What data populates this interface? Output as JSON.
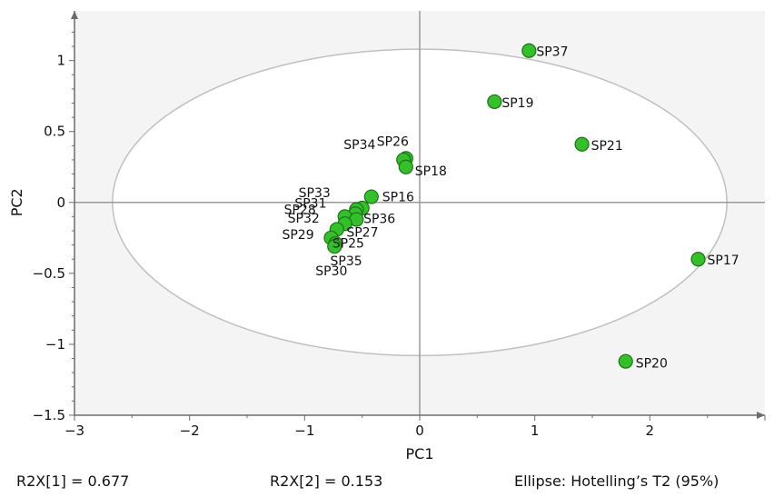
{
  "chart_data": {
    "type": "scatter",
    "xlabel": "PC1",
    "ylabel": "PC2",
    "xlim": [
      -3,
      3
    ],
    "ylim": [
      -1.5,
      1.35
    ],
    "xticks": [
      "−3",
      "−2",
      "−1",
      "0",
      "1",
      "2"
    ],
    "xtick_values": [
      -3,
      -2,
      -1,
      0,
      1,
      2
    ],
    "yticks": [
      "−1.5",
      "−1",
      "−0.5",
      "0",
      "0.5",
      "1"
    ],
    "ytick_values": [
      -1.5,
      -1,
      -0.5,
      0,
      0.5,
      1
    ],
    "grid": false,
    "ellipse": {
      "center": [
        0,
        0
      ],
      "rx": 2.67,
      "ry": 1.08
    },
    "colors": {
      "point": "#33c12a",
      "point_stroke": "#1f6f17",
      "plot_bg": "#f4f4f4",
      "ellipse": "#c0c0c0"
    },
    "points": [
      {
        "name": "SP37",
        "x": 0.95,
        "y": 1.07
      },
      {
        "name": "SP19",
        "x": 0.65,
        "y": 0.71
      },
      {
        "name": "SP21",
        "x": 1.41,
        "y": 0.41
      },
      {
        "name": "SP26",
        "x": -0.12,
        "y": 0.31
      },
      {
        "name": "SP34",
        "x": -0.14,
        "y": 0.3
      },
      {
        "name": "SP18",
        "x": -0.12,
        "y": 0.25
      },
      {
        "name": "SP16",
        "x": -0.42,
        "y": 0.04
      },
      {
        "name": "SP33",
        "x": -0.5,
        "y": -0.04
      },
      {
        "name": "SP31",
        "x": -0.55,
        "y": -0.05
      },
      {
        "name": "SP36",
        "x": -0.56,
        "y": -0.08
      },
      {
        "name": "SP28",
        "x": -0.65,
        "y": -0.1
      },
      {
        "name": "SP27",
        "x": -0.55,
        "y": -0.12
      },
      {
        "name": "SP32",
        "x": -0.65,
        "y": -0.15
      },
      {
        "name": "SP25",
        "x": -0.72,
        "y": -0.19
      },
      {
        "name": "SP29",
        "x": -0.77,
        "y": -0.25
      },
      {
        "name": "SP35",
        "x": -0.73,
        "y": -0.29
      },
      {
        "name": "SP30",
        "x": -0.74,
        "y": -0.31
      },
      {
        "name": "SP17",
        "x": 2.42,
        "y": -0.4
      },
      {
        "name": "SP20",
        "x": 1.79,
        "y": -1.12
      }
    ]
  },
  "footer": {
    "r2x1": "R2X[1] = 0.677",
    "r2x2": "R2X[2] = 0.153",
    "ellipse_note": "Ellipse: Hotelling’s T2 (95%)"
  }
}
